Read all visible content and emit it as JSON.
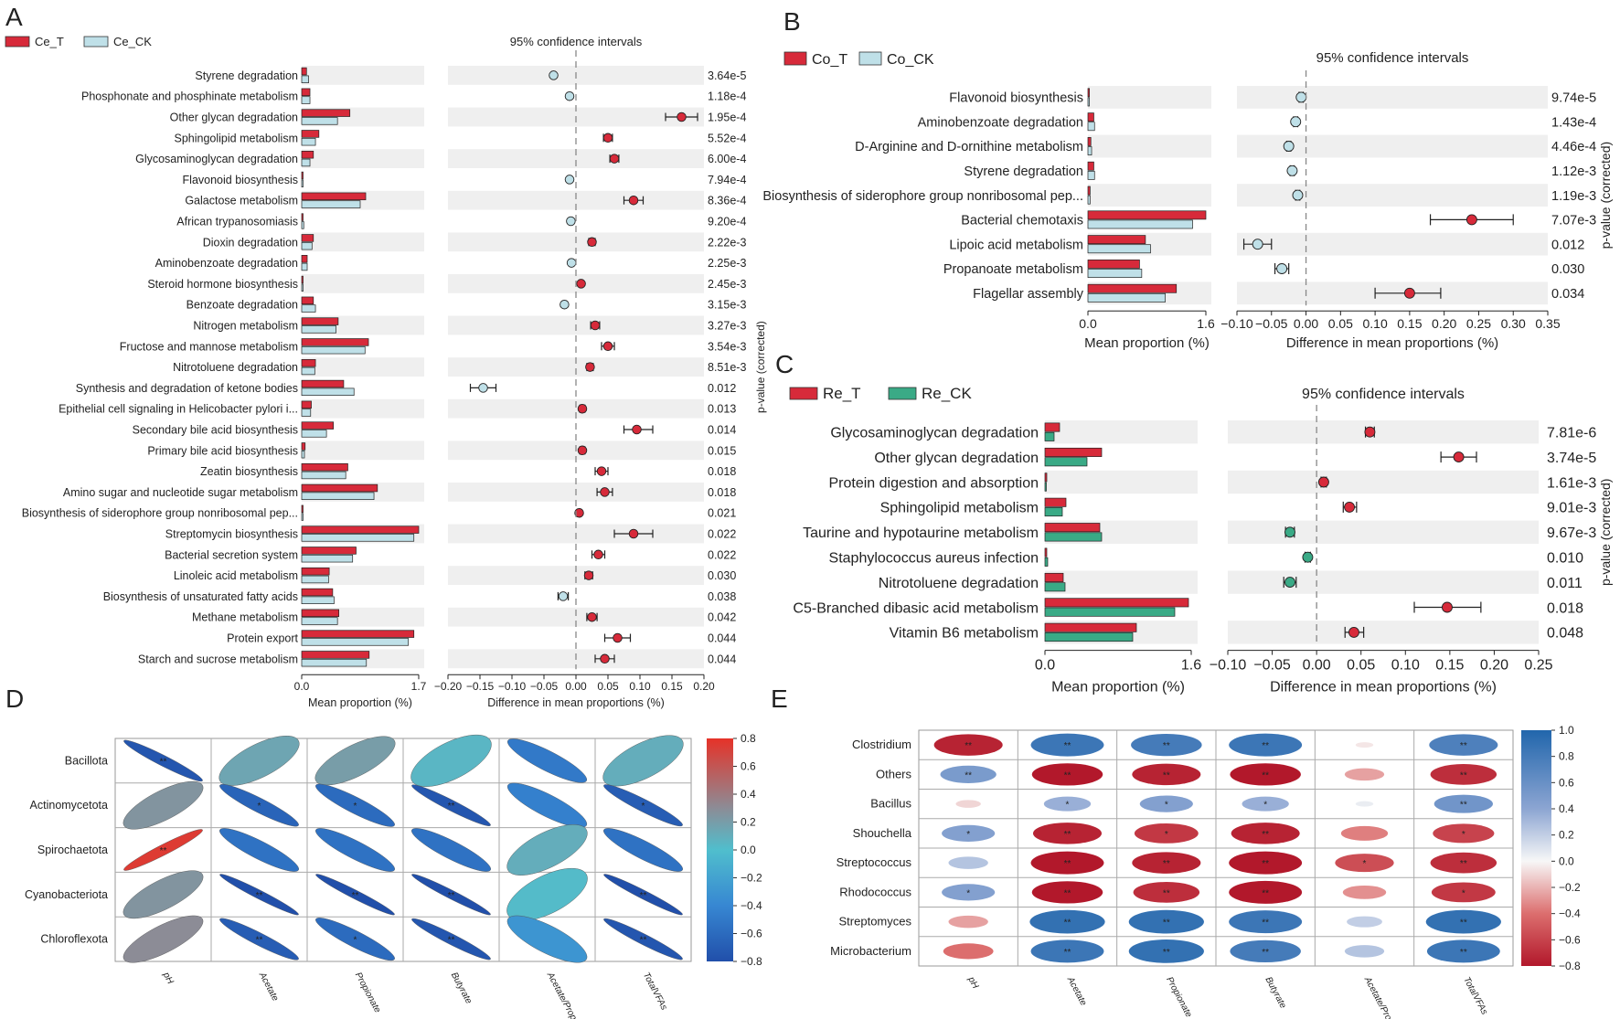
{
  "chart_data": [
    {
      "panel": "A",
      "type": "bar",
      "legend": [
        "Ce_T",
        "Ce_CK"
      ],
      "colors": [
        "#d72a3a",
        "#bfe0e8"
      ],
      "ci_title": "95% confidence intervals",
      "xlabel_bar": "Mean proportion (%)",
      "xlabel_diff": "Difference in mean proportions (%)",
      "ylabel_p": "p-value (corrected)",
      "bar_xlim": [
        0,
        1.7
      ],
      "bar_ticks": [
        "0.0",
        "1.7"
      ],
      "diff_xlim": [
        -0.2,
        0.2
      ],
      "diff_ticks": [
        "−0.20",
        "−0.15",
        "−0.10",
        "−0.05",
        "0.00",
        "0.05",
        "0.10",
        "0.15",
        "0.20"
      ],
      "categories": [
        "Styrene degradation",
        "Phosphonate and phosphinate metabolism",
        "Other glycan degradation",
        "Sphingolipid metabolism",
        "Glycosaminoglycan degradation",
        "Flavonoid biosynthesis",
        "Galactose metabolism",
        "African trypanosomiasis",
        "Dioxin degradation",
        "Aminobenzoate degradation",
        "Steroid hormone biosynthesis",
        "Benzoate degradation",
        "Nitrogen metabolism",
        "Fructose and mannose metabolism",
        "Nitrotoluene degradation",
        "Synthesis and degradation of ketone bodies",
        "Epithelial cell signaling in Helicobacter pylori i...",
        "Secondary bile acid biosynthesis",
        "Primary bile acid biosynthesis",
        "Zeatin biosynthesis",
        "Amino sugar and nucleotide sugar metabolism",
        "Biosynthesis of siderophore group nonribosomal pep...",
        "Streptomycin biosynthesis",
        "Bacterial secretion system",
        "Linoleic acid metabolism",
        "Biosynthesis of unsaturated fatty acids",
        "Methane metabolism",
        "Protein export",
        "Starch and sucrose metabolism"
      ],
      "series": [
        {
          "name": "Ce_T",
          "values": [
            0.07,
            0.12,
            0.7,
            0.25,
            0.17,
            0.02,
            0.93,
            0.02,
            0.17,
            0.08,
            0.02,
            0.17,
            0.53,
            0.97,
            0.2,
            0.61,
            0.14,
            0.46,
            0.05,
            0.67,
            1.1,
            0.02,
            1.7,
            0.79,
            0.4,
            0.45,
            0.54,
            1.63,
            0.98
          ]
        },
        {
          "name": "Ce_CK",
          "values": [
            0.1,
            0.12,
            0.52,
            0.2,
            0.12,
            0.01,
            0.85,
            0.03,
            0.15,
            0.08,
            0.01,
            0.2,
            0.5,
            0.92,
            0.19,
            0.76,
            0.13,
            0.36,
            0.04,
            0.64,
            1.05,
            0.01,
            1.63,
            0.74,
            0.39,
            0.47,
            0.52,
            1.55,
            0.94
          ]
        }
      ],
      "diff": [
        -0.035,
        -0.01,
        0.165,
        0.05,
        0.06,
        -0.01,
        0.09,
        -0.008,
        0.025,
        -0.007,
        0.008,
        -0.018,
        0.03,
        0.05,
        0.022,
        -0.145,
        0.01,
        0.095,
        0.01,
        0.04,
        0.045,
        0.005,
        0.09,
        0.035,
        0.02,
        -0.02,
        0.025,
        0.065,
        0.045
      ],
      "ci_low": [
        -0.038,
        -0.013,
        0.14,
        0.043,
        0.053,
        -0.013,
        0.075,
        -0.011,
        0.02,
        -0.01,
        0.005,
        -0.021,
        0.023,
        0.04,
        0.017,
        -0.165,
        0.006,
        0.075,
        0.006,
        0.03,
        0.033,
        0.002,
        0.06,
        0.025,
        0.014,
        -0.028,
        0.017,
        0.045,
        0.03
      ],
      "ci_high": [
        -0.032,
        -0.007,
        0.19,
        0.057,
        0.067,
        -0.007,
        0.105,
        -0.005,
        0.03,
        -0.004,
        0.011,
        -0.015,
        0.037,
        0.06,
        0.027,
        -0.125,
        0.014,
        0.12,
        0.014,
        0.05,
        0.057,
        0.008,
        0.12,
        0.045,
        0.026,
        -0.012,
        0.033,
        0.085,
        0.06
      ],
      "winner": [
        "CK",
        "CK",
        "T",
        "T",
        "T",
        "CK",
        "T",
        "CK",
        "T",
        "CK",
        "T",
        "CK",
        "T",
        "T",
        "T",
        "CK",
        "T",
        "T",
        "T",
        "T",
        "T",
        "T",
        "T",
        "T",
        "T",
        "CK",
        "T",
        "T",
        "T"
      ],
      "pvalues": [
        "3.64e-5",
        "1.18e-4",
        "1.95e-4",
        "5.52e-4",
        "6.00e-4",
        "7.94e-4",
        "8.36e-4",
        "9.20e-4",
        "2.22e-3",
        "2.25e-3",
        "2.45e-3",
        "3.15e-3",
        "3.27e-3",
        "3.54e-3",
        "8.51e-3",
        "0.012",
        "0.013",
        "0.014",
        "0.015",
        "0.018",
        "0.018",
        "0.021",
        "0.022",
        "0.022",
        "0.030",
        "0.038",
        "0.042",
        "0.044",
        "0.044"
      ]
    },
    {
      "panel": "B",
      "type": "bar",
      "legend": [
        "Co_T",
        "Co_CK"
      ],
      "colors": [
        "#d72a3a",
        "#bfe0e8"
      ],
      "ci_title": "95% confidence intervals",
      "xlabel_bar": "Mean proportion (%)",
      "xlabel_diff": "Difference in mean proportions (%)",
      "ylabel_p": "p-value (corrected)",
      "bar_xlim": [
        0,
        1.6
      ],
      "bar_ticks": [
        "0.0",
        "1.6"
      ],
      "diff_xlim": [
        -0.1,
        0.35
      ],
      "diff_ticks": [
        "−0.10",
        "−0.05",
        "0.00",
        "0.05",
        "0.10",
        "0.15",
        "0.20",
        "0.25",
        "0.30",
        "0.35"
      ],
      "categories": [
        "Flavonoid biosynthesis",
        "Aminobenzoate degradation",
        "D-Arginine and D-ornithine metabolism",
        "Styrene degradation",
        "Biosynthesis of siderophore group nonribosomal pep...",
        "Bacterial chemotaxis",
        "Lipoic acid metabolism",
        "Propanoate metabolism",
        "Flagellar assembly"
      ],
      "series": [
        {
          "name": "Co_T",
          "values": [
            0.02,
            0.08,
            0.04,
            0.08,
            0.03,
            1.6,
            0.78,
            0.7,
            1.2
          ]
        },
        {
          "name": "Co_CK",
          "values": [
            0.02,
            0.09,
            0.05,
            0.09,
            0.03,
            1.42,
            0.85,
            0.73,
            1.05
          ]
        }
      ],
      "diff": [
        -0.007,
        -0.015,
        -0.025,
        -0.02,
        -0.012,
        0.24,
        -0.07,
        -0.035,
        0.15
      ],
      "ci_low": [
        -0.01,
        -0.018,
        -0.028,
        -0.023,
        -0.015,
        0.18,
        -0.09,
        -0.045,
        0.1
      ],
      "ci_high": [
        -0.004,
        -0.012,
        -0.022,
        -0.017,
        -0.009,
        0.3,
        -0.05,
        -0.025,
        0.195
      ],
      "winner": [
        "CK",
        "CK",
        "CK",
        "CK",
        "CK",
        "T",
        "CK",
        "CK",
        "T"
      ],
      "pvalues": [
        "9.74e-5",
        "1.43e-4",
        "4.46e-4",
        "1.12e-3",
        "1.19e-3",
        "7.07e-3",
        "0.012",
        "0.030",
        "0.034"
      ]
    },
    {
      "panel": "C",
      "type": "bar",
      "legend": [
        "Re_T",
        "Re_CK"
      ],
      "colors": [
        "#d72a3a",
        "#3aaa86"
      ],
      "ci_title": "95% confidence intervals",
      "xlabel_bar": "Mean proportion (%)",
      "xlabel_diff": "Difference in mean proportions (%)",
      "ylabel_p": "p-value (corrected)",
      "bar_xlim": [
        0,
        1.6
      ],
      "bar_ticks": [
        "0.0",
        "1.6"
      ],
      "diff_xlim": [
        -0.1,
        0.25
      ],
      "diff_ticks": [
        "−0.10",
        "−0.05",
        "0.00",
        "0.05",
        "0.10",
        "0.15",
        "0.20",
        "0.25"
      ],
      "categories": [
        "Glycosaminoglycan degradation",
        "Other glycan degradation",
        "Protein digestion and absorption",
        "Sphingolipid metabolism",
        "Taurine and hypotaurine metabolism",
        "Staphylococcus aureus infection",
        "Nitrotoluene degradation",
        "C5-Branched dibasic acid metabolism",
        "Vitamin B6 metabolism"
      ],
      "series": [
        {
          "name": "Re_T",
          "values": [
            0.16,
            0.62,
            0.02,
            0.23,
            0.6,
            0.02,
            0.2,
            1.57,
            1.0
          ]
        },
        {
          "name": "Re_CK",
          "values": [
            0.1,
            0.46,
            0.01,
            0.19,
            0.62,
            0.03,
            0.22,
            1.42,
            0.96
          ]
        }
      ],
      "diff": [
        0.06,
        0.16,
        0.008,
        0.037,
        -0.03,
        -0.01,
        -0.03,
        0.147,
        0.042
      ],
      "ci_low": [
        0.055,
        0.14,
        0.005,
        0.03,
        -0.035,
        -0.013,
        -0.037,
        0.11,
        0.032
      ],
      "ci_high": [
        0.065,
        0.18,
        0.011,
        0.045,
        -0.025,
        -0.007,
        -0.023,
        0.185,
        0.053
      ],
      "winner": [
        "T",
        "T",
        "T",
        "T",
        "CK",
        "CK",
        "CK",
        "T",
        "T"
      ],
      "pvalues": [
        "7.81e-6",
        "3.74e-5",
        "1.61e-3",
        "9.01e-3",
        "9.67e-3",
        "0.010",
        "0.011",
        "0.018",
        "0.048"
      ]
    },
    {
      "panel": "D",
      "type": "heatmap",
      "rows": [
        "Bacillota",
        "Actinomycetota",
        "Spirochaetota",
        "Cyanobacteriota",
        "Chloroflexota"
      ],
      "columns": [
        "pH",
        "Acetate",
        "Propionate",
        "Butyrate",
        "Acetate/Propionate",
        "TotalVFAs"
      ],
      "values": [
        [
          -0.75,
          0.15,
          0.2,
          0.05,
          -0.5,
          0.1
        ],
        [
          0.25,
          -0.65,
          -0.6,
          -0.75,
          -0.45,
          -0.7
        ],
        [
          0.75,
          -0.55,
          -0.55,
          -0.55,
          0.1,
          -0.55
        ],
        [
          0.25,
          -0.8,
          -0.8,
          -0.8,
          0.02,
          -0.8
        ],
        [
          0.3,
          -0.7,
          -0.6,
          -0.75,
          -0.3,
          -0.75
        ]
      ],
      "stars": [
        [
          "**",
          "",
          "",
          "",
          "",
          ""
        ],
        [
          "",
          "*",
          "*",
          "**",
          "",
          "*"
        ],
        [
          "**",
          "",
          "",
          "",
          "",
          ""
        ],
        [
          "",
          "**",
          "**",
          "**",
          "",
          "**"
        ],
        [
          "",
          "**",
          "*",
          "**",
          "",
          "**"
        ]
      ],
      "colorbar_range": [
        -0.8,
        0.8
      ],
      "colorbar_ticks": [
        "0.8",
        "0.6",
        "0.4",
        "0.2",
        "0.0",
        "−0.2",
        "−0.4",
        "−0.6",
        "−0.8"
      ]
    },
    {
      "panel": "E",
      "type": "heatmap",
      "rows": [
        "Clostridium",
        "Others",
        "Bacillus",
        "Shouchella",
        "Streptococcus",
        "Rhodococcus",
        "Streptomyces",
        "Microbacterium"
      ],
      "columns": [
        "pH",
        "Acetate",
        "Propionate",
        "Butyrate",
        "Acetate/Propionate",
        "TotalVFAs"
      ],
      "values": [
        [
          -0.75,
          0.85,
          0.8,
          0.85,
          -0.05,
          0.75
        ],
        [
          0.5,
          -0.8,
          -0.75,
          -0.8,
          -0.25,
          -0.7
        ],
        [
          -0.1,
          0.35,
          0.45,
          0.35,
          0.05,
          0.55
        ],
        [
          0.45,
          -0.75,
          -0.65,
          -0.75,
          -0.35,
          -0.6
        ],
        [
          0.25,
          -0.85,
          -0.75,
          -0.85,
          -0.55,
          -0.7
        ],
        [
          0.45,
          -0.8,
          -0.7,
          -0.85,
          -0.3,
          -0.65
        ],
        [
          -0.25,
          0.9,
          0.9,
          0.85,
          0.2,
          0.9
        ],
        [
          -0.4,
          0.85,
          0.9,
          0.8,
          0.25,
          0.85
        ]
      ],
      "stars": [
        [
          "**",
          "**",
          "**",
          "**",
          "",
          "**"
        ],
        [
          "**",
          "**",
          "**",
          "**",
          "",
          "**"
        ],
        [
          "",
          "*",
          "*",
          "*",
          "",
          "**"
        ],
        [
          "*",
          "**",
          "*",
          "**",
          "",
          "*"
        ],
        [
          "",
          "**",
          "**",
          "**",
          "*",
          "**"
        ],
        [
          "*",
          "**",
          "**",
          "**",
          "",
          "*"
        ],
        [
          "",
          "**",
          "**",
          "**",
          "",
          "**"
        ],
        [
          "",
          "**",
          "**",
          "**",
          "",
          "**"
        ]
      ],
      "colorbar_range": [
        -0.8,
        1.0
      ],
      "colorbar_ticks": [
        "1.0",
        "0.8",
        "0.6",
        "0.4",
        "0.2",
        "0.0",
        "−0.2",
        "−0.4",
        "−0.6",
        "−0.8"
      ]
    }
  ]
}
